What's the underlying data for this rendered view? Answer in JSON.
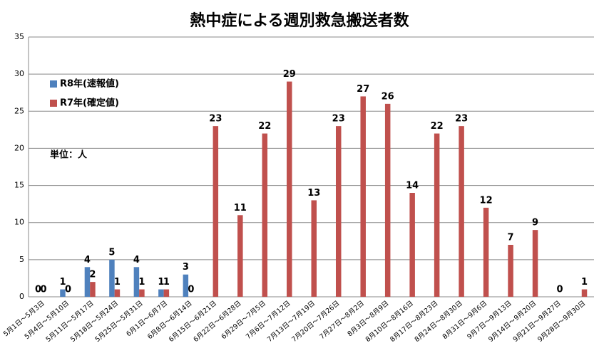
{
  "chart_data": {
    "type": "bar",
    "title": "熱中症による週別救急搬送者数",
    "unit_note": "単位：人",
    "categories": [
      "5月1日～5月3日",
      "5月4日～5月10日",
      "5月11日～5月17日",
      "5月18日～5月24日",
      "5月25日～5月31日",
      "6月1日～6月7日",
      "6月8日～6月14日",
      "6月15日～6月21日",
      "6月22日～6月28日",
      "6月29日～7月5日",
      "7月6日～7月12日",
      "7月13日～7月19日",
      "7月20日～7月26日",
      "7月27日～8月2日",
      "8月3日～8月9日",
      "8月10日～8月16日",
      "8月17日～8月23日",
      "8月24日～8月30日",
      "8月31日～9月6日",
      "9月7日～9月13日",
      "9月14日～9月20日",
      "9月21日～9月27日",
      "9月28日～9月30日"
    ],
    "series": [
      {
        "name": "R8年(速報値)",
        "color": "#4f81bd",
        "values": [
          0,
          1,
          4,
          5,
          4,
          1,
          3,
          null,
          null,
          null,
          null,
          null,
          null,
          null,
          null,
          null,
          null,
          null,
          null,
          null,
          null,
          null,
          null
        ]
      },
      {
        "name": "R7年(確定値)",
        "color": "#c0504d",
        "values": [
          0,
          0,
          2,
          1,
          1,
          1,
          0,
          23,
          11,
          22,
          29,
          13,
          23,
          27,
          26,
          14,
          22,
          23,
          12,
          7,
          9,
          0,
          1
        ]
      }
    ],
    "ylim": [
      0,
      35
    ],
    "yticks": [
      0,
      5,
      10,
      15,
      20,
      25,
      30,
      35
    ],
    "grid": true
  }
}
